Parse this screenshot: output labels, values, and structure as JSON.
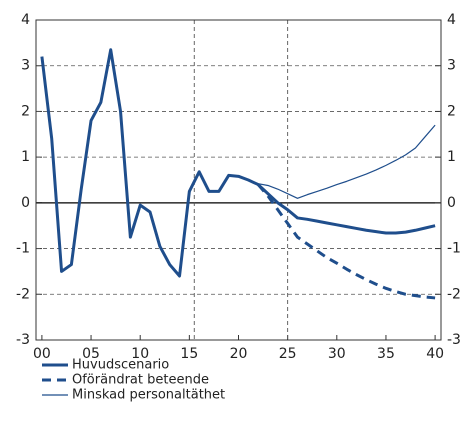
{
  "chart_data": {
    "type": "line",
    "x": [
      0,
      1,
      2,
      3,
      4,
      5,
      6,
      7,
      8,
      9,
      10,
      11,
      12,
      13,
      14,
      15,
      16,
      17,
      18,
      19,
      20,
      21,
      22,
      23,
      24,
      25,
      26,
      27,
      28,
      29,
      30,
      31,
      32,
      33,
      34,
      35,
      36,
      37,
      38,
      39,
      40
    ],
    "series": [
      {
        "name": "Huvudscenario",
        "color": "#1f4e8c",
        "width": 3,
        "dash": "none",
        "values": [
          3.2,
          1.4,
          -1.5,
          -1.35,
          0.3,
          1.8,
          2.2,
          3.35,
          2.0,
          -0.75,
          -0.05,
          -0.2,
          -0.95,
          -1.35,
          -1.6,
          0.25,
          0.68,
          0.25,
          0.25,
          0.6,
          0.58,
          0.5,
          0.4,
          0.2,
          0.0,
          -0.15,
          -0.33,
          -0.36,
          -0.4,
          -0.44,
          -0.48,
          -0.52,
          -0.56,
          -0.6,
          -0.63,
          -0.66,
          -0.66,
          -0.64,
          -0.6,
          -0.55,
          -0.5
        ]
      },
      {
        "name": "Oförändrat beteende",
        "color": "#1f4e8c",
        "width": 3,
        "dash": "9 6",
        "values": [
          null,
          null,
          null,
          null,
          null,
          null,
          null,
          null,
          null,
          null,
          null,
          null,
          null,
          null,
          null,
          null,
          null,
          null,
          null,
          null,
          null,
          null,
          0.4,
          0.15,
          -0.15,
          -0.45,
          -0.75,
          -0.9,
          -1.05,
          -1.2,
          -1.32,
          -1.45,
          -1.57,
          -1.68,
          -1.78,
          -1.87,
          -1.94,
          -2.0,
          -2.03,
          -2.06,
          -2.08
        ]
      },
      {
        "name": "Minskad personaltäthet",
        "color": "#1f4e8c",
        "width": 1.2,
        "dash": "none",
        "values": [
          null,
          null,
          null,
          null,
          null,
          null,
          null,
          null,
          null,
          null,
          null,
          null,
          null,
          null,
          null,
          null,
          null,
          null,
          null,
          null,
          null,
          0.5,
          0.42,
          0.38,
          0.3,
          0.2,
          0.1,
          0.18,
          0.25,
          0.32,
          0.4,
          0.47,
          0.55,
          0.63,
          0.72,
          0.82,
          0.93,
          1.05,
          1.2,
          1.45,
          1.7
        ]
      }
    ],
    "xlim": [
      -0.6,
      40.6
    ],
    "xticks": [
      {
        "value": 0,
        "label": "00"
      },
      {
        "value": 5,
        "label": "05"
      },
      10,
      15,
      20,
      25,
      30,
      35,
      40
    ],
    "ylim": [
      -3,
      4
    ],
    "yticks": [
      -3,
      -2,
      -1,
      0,
      1,
      2,
      3,
      4
    ],
    "y2lim": [
      -3,
      4
    ],
    "y2ticks": [
      -3,
      -2,
      -1,
      0,
      1,
      2,
      3,
      4
    ],
    "vlines": [
      15.5,
      25
    ],
    "grid": true,
    "legend": "bottom-left"
  }
}
